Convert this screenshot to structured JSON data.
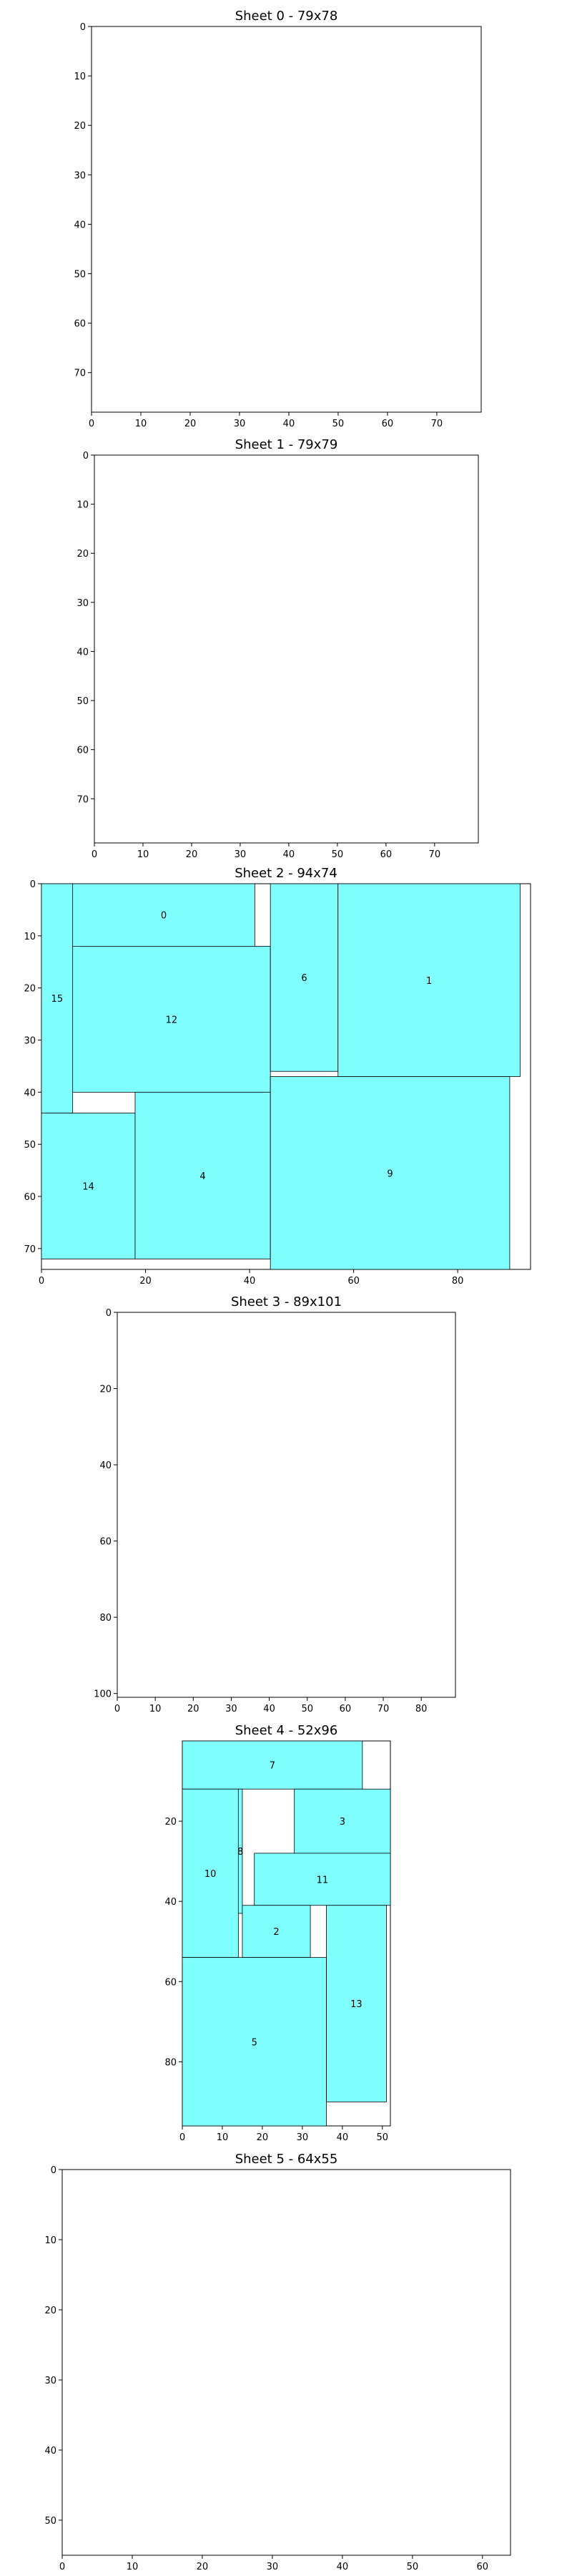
{
  "colors": {
    "fill": "#80ffff",
    "edge": "#000000",
    "background": "#ffffff"
  },
  "chart_data": [
    {
      "type": "rectangle-packing",
      "title": "Sheet 0 - 79x78",
      "sheet": {
        "width": 79,
        "height": 78
      },
      "xlim": [
        0,
        79
      ],
      "ylim": [
        78,
        0
      ],
      "xticks": [
        0,
        10,
        20,
        30,
        40,
        50,
        60,
        70
      ],
      "yticks": [
        0,
        10,
        20,
        30,
        40,
        50,
        60,
        70
      ],
      "rects": []
    },
    {
      "type": "rectangle-packing",
      "title": "Sheet 1 - 79x79",
      "sheet": {
        "width": 79,
        "height": 79
      },
      "xlim": [
        0,
        79
      ],
      "ylim": [
        79,
        0
      ],
      "xticks": [
        0,
        10,
        20,
        30,
        40,
        50,
        60,
        70
      ],
      "yticks": [
        0,
        10,
        20,
        30,
        40,
        50,
        60,
        70
      ],
      "rects": []
    },
    {
      "type": "rectangle-packing",
      "title": "Sheet 2 - 94x74",
      "sheet": {
        "width": 94,
        "height": 74
      },
      "xlim": [
        0,
        94
      ],
      "ylim": [
        74,
        0
      ],
      "xticks": [
        0,
        20,
        40,
        60,
        80
      ],
      "yticks": [
        0,
        10,
        20,
        30,
        40,
        50,
        60,
        70
      ],
      "rects": [
        {
          "id": "15",
          "x": 0,
          "y": 0,
          "w": 6,
          "h": 44
        },
        {
          "id": "0",
          "x": 6,
          "y": 0,
          "w": 35,
          "h": 12
        },
        {
          "id": "12",
          "x": 6,
          "y": 12,
          "w": 38,
          "h": 28
        },
        {
          "id": "6",
          "x": 44,
          "y": 0,
          "w": 13,
          "h": 36
        },
        {
          "id": "1",
          "x": 57,
          "y": 0,
          "w": 35,
          "h": 37
        },
        {
          "id": "14",
          "x": 0,
          "y": 44,
          "w": 18,
          "h": 28
        },
        {
          "id": "4",
          "x": 18,
          "y": 40,
          "w": 26,
          "h": 32
        },
        {
          "id": "9",
          "x": 44,
          "y": 37,
          "w": 46,
          "h": 37
        }
      ]
    },
    {
      "type": "rectangle-packing",
      "title": "Sheet 3 - 89x101",
      "sheet": {
        "width": 89,
        "height": 101
      },
      "xlim": [
        0,
        89
      ],
      "ylim": [
        101,
        0
      ],
      "xticks": [
        0,
        10,
        20,
        30,
        40,
        50,
        60,
        70,
        80
      ],
      "yticks": [
        0,
        20,
        40,
        60,
        80,
        100
      ],
      "rects": []
    },
    {
      "type": "rectangle-packing",
      "title": "Sheet 4 - 52x96",
      "sheet": {
        "width": 52,
        "height": 96
      },
      "xlim": [
        0,
        52
      ],
      "ylim": [
        96,
        0
      ],
      "xticks": [
        0,
        10,
        20,
        30,
        40,
        50
      ],
      "yticks": [
        20,
        40,
        60,
        80
      ],
      "rects": [
        {
          "id": "7",
          "x": 0,
          "y": 0,
          "w": 45,
          "h": 12
        },
        {
          "id": "3",
          "x": 28,
          "y": 12,
          "w": 24,
          "h": 16
        },
        {
          "id": "10",
          "x": 0,
          "y": 12,
          "w": 14,
          "h": 42
        },
        {
          "id": "8",
          "x": 14,
          "y": 12,
          "w": 1,
          "h": 31
        },
        {
          "id": "11",
          "x": 18,
          "y": 28,
          "w": 34,
          "h": 13
        },
        {
          "id": "2",
          "x": 15,
          "y": 41,
          "w": 17,
          "h": 13
        },
        {
          "id": "13",
          "x": 36,
          "y": 41,
          "w": 15,
          "h": 49
        },
        {
          "id": "5",
          "x": 0,
          "y": 54,
          "w": 36,
          "h": 42
        }
      ]
    },
    {
      "type": "rectangle-packing",
      "title": "Sheet 5 - 64x55",
      "sheet": {
        "width": 64,
        "height": 55
      },
      "xlim": [
        0,
        64
      ],
      "ylim": [
        55,
        0
      ],
      "xticks": [
        0,
        10,
        20,
        30,
        40,
        50,
        60
      ],
      "yticks": [
        0,
        10,
        20,
        30,
        40,
        50
      ],
      "rects": []
    }
  ]
}
